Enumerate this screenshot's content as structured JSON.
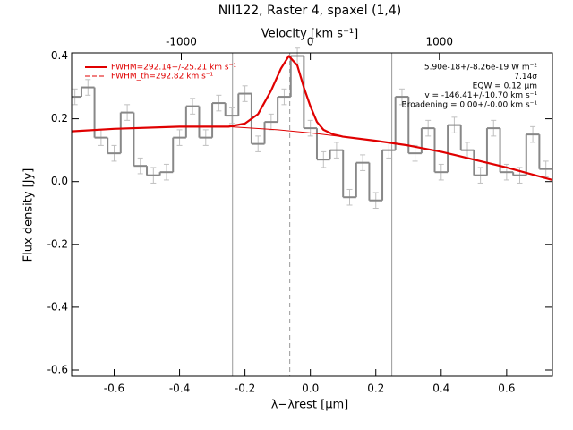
{
  "chart_data": {
    "type": "step",
    "title": "NII122, Raster 4, spaxel (1,4)",
    "xlabel": "λ−λrest [μm]",
    "ylabel": "Flux density [Jy]",
    "x2label": "Velocity [km s⁻¹]",
    "xlim": [
      -0.73,
      0.74
    ],
    "ylim": [
      -0.62,
      0.41
    ],
    "x2lim": [
      -1850,
      1876
    ],
    "xticks": [
      -0.6,
      -0.4,
      -0.2,
      {
        "value": 0,
        "label": "0.0"
      },
      0.2,
      0.4,
      0.6
    ],
    "yticks": [
      -0.6,
      -0.4,
      -0.2,
      {
        "value": 0,
        "label": "0.0"
      },
      0.2,
      0.4
    ],
    "x2ticks": [
      -1000,
      0,
      1000
    ],
    "bin_width": 0.04,
    "x": [
      -0.72,
      -0.68,
      -0.64,
      -0.6,
      -0.56,
      -0.52,
      -0.48,
      -0.44,
      -0.4,
      -0.36,
      -0.32,
      -0.28,
      -0.24,
      -0.2,
      -0.16,
      -0.12,
      -0.08,
      -0.04,
      0.0,
      0.04,
      0.08,
      0.12,
      0.16,
      0.2,
      0.24,
      0.28,
      0.32,
      0.36,
      0.4,
      0.44,
      0.48,
      0.52,
      0.56,
      0.6,
      0.64,
      0.68,
      0.72
    ],
    "values": [
      0.27,
      0.3,
      0.14,
      0.09,
      0.22,
      0.05,
      0.02,
      0.03,
      0.14,
      0.24,
      0.14,
      0.25,
      0.21,
      0.28,
      0.12,
      0.19,
      0.27,
      0.4,
      0.17,
      0.07,
      0.1,
      -0.05,
      0.06,
      -0.06,
      0.1,
      0.27,
      0.09,
      0.17,
      0.03,
      0.18,
      0.1,
      0.02,
      0.17,
      0.03,
      0.02,
      0.15,
      0.04
    ],
    "error": 0.025,
    "data_color": "#888888",
    "error_color": "#c0c0c0",
    "series": [
      {
        "name": "FWHM=292.14+/-25.21 km s⁻¹",
        "color": "#e00000",
        "style": "solid",
        "x": [
          -0.73,
          -0.6,
          -0.4,
          -0.25,
          -0.2,
          -0.16,
          -0.12,
          -0.09,
          -0.066,
          -0.04,
          -0.02,
          0.0,
          0.02,
          0.04,
          0.07,
          0.1,
          0.2,
          0.3,
          0.4,
          0.5,
          0.6,
          0.74
        ],
        "values": [
          0.16,
          0.168,
          0.175,
          0.175,
          0.185,
          0.215,
          0.29,
          0.36,
          0.4,
          0.37,
          0.3,
          0.24,
          0.19,
          0.165,
          0.15,
          0.143,
          0.13,
          0.115,
          0.095,
          0.07,
          0.045,
          0.005
        ]
      },
      {
        "name": "FWHM_th=292.82 km s⁻¹",
        "color": "#e00000",
        "style": "dashed"
      }
    ],
    "continuum": {
      "color": "#e00000",
      "x": [
        -0.73,
        -0.6,
        -0.4,
        -0.25,
        -0.1,
        0.0,
        0.1,
        0.2
      ],
      "values": [
        0.16,
        0.168,
        0.175,
        0.175,
        0.165,
        0.155,
        0.143,
        0.13
      ]
    },
    "vlines": [
      -0.238,
      0.005,
      0.249
    ],
    "vline_color": "#999999",
    "line_center": -0.063,
    "annotations": [
      "5.90e-18+/-8.26e-19 W m⁻²",
      "7.14σ",
      "EQW = 0.12 μm",
      "v = -146.41+/-10.70 km s⁻¹",
      "Broadening = 0.00+/-0.00 km s⁻¹"
    ]
  }
}
